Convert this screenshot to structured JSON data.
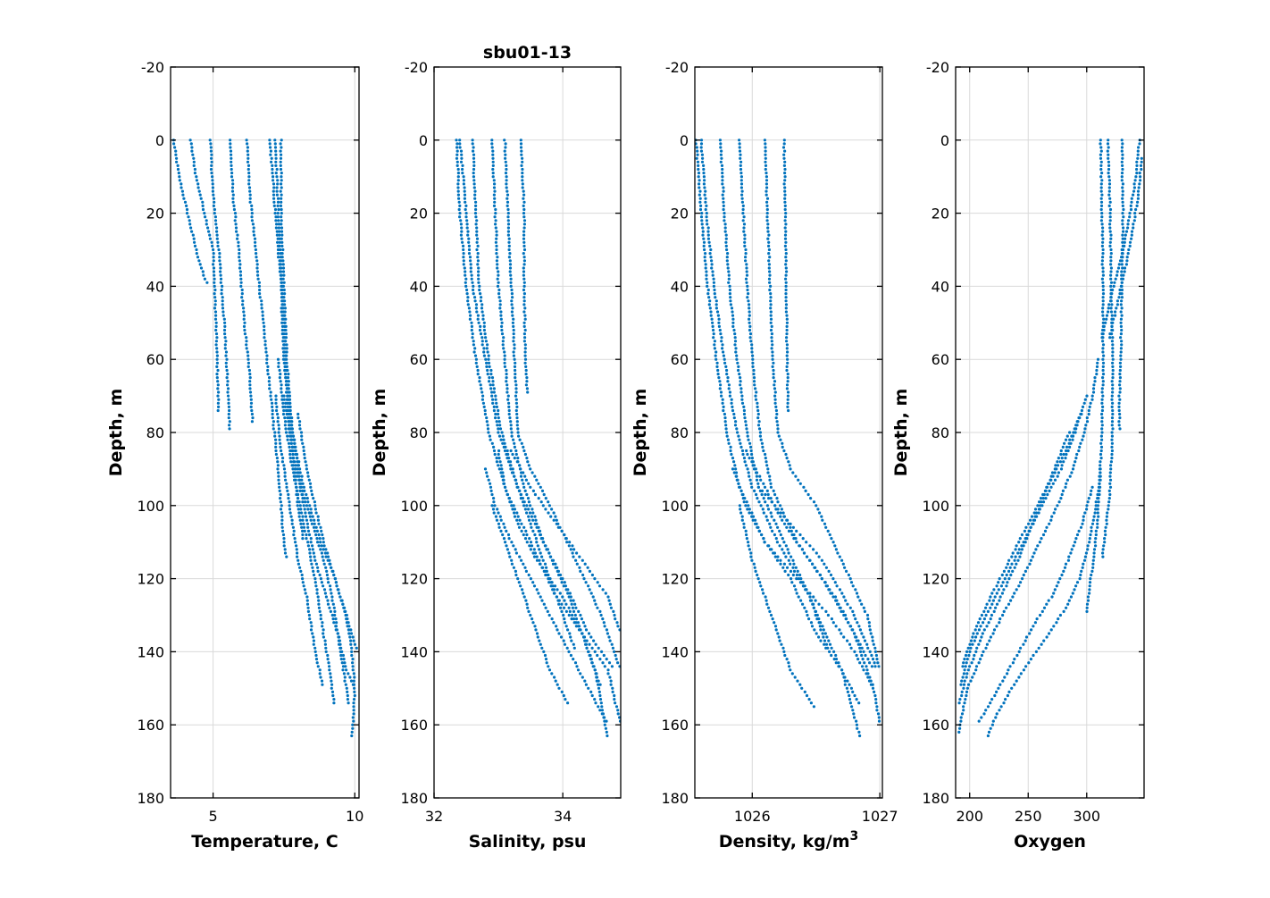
{
  "figure_title": "sbu01-13",
  "point_color": "#0072BD",
  "chart_data": [
    {
      "type": "scatter",
      "title": "",
      "xlabel": "Temperature, C",
      "ylabel": "Depth, m",
      "xlim": [
        3.5,
        10.15
      ],
      "ylim": [
        -20,
        180
      ],
      "y_reversed": true,
      "grid": true,
      "xticks": [
        5,
        10
      ],
      "xtick_labels": [
        "5",
        "10"
      ],
      "yticks": [
        -20,
        0,
        20,
        40,
        60,
        80,
        100,
        120,
        140,
        160,
        180
      ],
      "ytick_labels": [
        "-20",
        "0",
        "20",
        "40",
        "60",
        "80",
        "100",
        "120",
        "140",
        "160",
        "180"
      ],
      "profiles": [
        {
          "x": [
            3.6,
            3.8,
            4.1,
            4.4,
            4.7,
            4.9
          ],
          "y": [
            0,
            10,
            20,
            30,
            38,
            40
          ]
        },
        {
          "x": [
            4.2,
            4.4,
            4.7,
            5.0,
            5.1,
            5.2
          ],
          "y": [
            0,
            10,
            20,
            30,
            50,
            75
          ]
        },
        {
          "x": [
            4.9,
            5.0,
            5.2,
            5.4,
            5.5,
            5.6
          ],
          "y": [
            0,
            15,
            30,
            50,
            65,
            80
          ]
        },
        {
          "x": [
            5.6,
            5.7,
            5.9,
            6.1,
            6.3,
            6.4
          ],
          "y": [
            0,
            15,
            30,
            50,
            65,
            78
          ]
        },
        {
          "x": [
            6.2,
            6.3,
            6.5,
            6.7,
            6.9,
            7.1,
            7.3,
            7.4,
            7.5,
            7.6
          ],
          "y": [
            0,
            15,
            30,
            45,
            60,
            75,
            90,
            100,
            110,
            115
          ]
        },
        {
          "x": [
            7.2,
            7.3,
            7.4,
            7.5,
            7.6,
            7.8,
            8.0,
            8.2
          ],
          "y": [
            0,
            20,
            35,
            50,
            70,
            85,
            100,
            110
          ]
        },
        {
          "x": [
            7.4,
            7.4,
            7.5,
            7.6,
            7.8,
            8.1,
            8.5,
            8.9,
            9.2,
            9.4,
            9.6,
            9.8
          ],
          "y": [
            0,
            20,
            40,
            60,
            80,
            95,
            105,
            115,
            125,
            135,
            145,
            155
          ]
        },
        {
          "x": [
            7.0,
            7.2,
            7.4,
            7.5,
            7.8,
            8.2,
            8.8,
            9.3,
            9.7,
            9.9,
            10.0,
            9.9
          ],
          "y": [
            0,
            20,
            40,
            60,
            80,
            95,
            110,
            120,
            130,
            140,
            150,
            164
          ]
        },
        {
          "x": [
            7.3,
            7.5,
            7.8,
            8.2,
            8.6,
            9.0,
            9.3
          ],
          "y": [
            60,
            75,
            90,
            105,
            120,
            140,
            155
          ]
        },
        {
          "x": [
            7.5,
            7.8,
            8.2,
            8.6,
            9.0,
            9.4,
            9.7,
            10.0
          ],
          "y": [
            70,
            85,
            100,
            115,
            125,
            135,
            145,
            150
          ]
        },
        {
          "x": [
            8.0,
            8.3,
            8.6,
            8.9,
            9.3,
            9.7,
            10.1
          ],
          "y": [
            75,
            90,
            100,
            110,
            120,
            130,
            140
          ]
        },
        {
          "x": [
            7.2,
            7.4,
            7.7,
            8.0,
            8.3,
            8.6,
            8.9
          ],
          "y": [
            70,
            85,
            100,
            115,
            125,
            140,
            150
          ]
        }
      ]
    },
    {
      "type": "scatter",
      "title": "",
      "xlabel": "Salinity, psu",
      "ylabel": "Depth, m",
      "xlim": [
        32,
        34.9
      ],
      "ylim": [
        -20,
        180
      ],
      "y_reversed": true,
      "grid": true,
      "xticks": [
        32,
        34
      ],
      "xtick_labels": [
        "32",
        "34"
      ],
      "yticks": [
        -20,
        0,
        20,
        40,
        60,
        80,
        100,
        120,
        140,
        160,
        180
      ],
      "ytick_labels": [
        "-20",
        "0",
        "20",
        "40",
        "60",
        "80",
        "100",
        "120",
        "140",
        "160",
        "180"
      ],
      "profiles": [
        {
          "x": [
            32.35,
            32.4,
            32.5,
            32.65,
            32.85,
            33.1,
            33.5,
            33.9,
            34.3,
            34.7,
            34.9
          ],
          "y": [
            0,
            20,
            40,
            60,
            80,
            95,
            110,
            125,
            135,
            145,
            160
          ]
        },
        {
          "x": [
            32.4,
            32.5,
            32.6,
            32.8,
            33.0,
            33.3,
            33.7,
            34.1,
            34.5,
            34.7
          ],
          "y": [
            0,
            20,
            40,
            60,
            80,
            95,
            110,
            125,
            145,
            164
          ]
        },
        {
          "x": [
            32.6,
            32.65,
            32.7,
            32.85,
            33.05,
            33.3,
            33.6,
            33.9,
            34.2
          ],
          "y": [
            0,
            20,
            40,
            60,
            80,
            95,
            110,
            125,
            140
          ]
        },
        {
          "x": [
            32.9,
            32.95,
            33.0,
            33.1,
            33.2,
            33.4,
            33.7,
            34.0,
            34.4,
            34.8
          ],
          "y": [
            0,
            20,
            40,
            60,
            80,
            95,
            110,
            120,
            135,
            145
          ]
        },
        {
          "x": [
            33.1,
            33.15,
            33.2,
            33.25,
            33.3,
            33.5,
            33.8,
            34.2,
            34.6,
            34.9
          ],
          "y": [
            0,
            20,
            40,
            60,
            80,
            90,
            100,
            115,
            130,
            145
          ]
        },
        {
          "x": [
            33.35,
            33.4,
            33.4,
            33.42,
            33.45
          ],
          "y": [
            0,
            20,
            40,
            60,
            70
          ]
        },
        {
          "x": [
            33.0,
            33.1,
            33.3,
            33.6,
            34.0,
            34.3,
            34.6
          ],
          "y": [
            85,
            95,
            105,
            115,
            125,
            135,
            150
          ]
        },
        {
          "x": [
            32.8,
            32.95,
            33.2,
            33.5,
            33.8,
            34.1,
            34.4,
            34.7
          ],
          "y": [
            90,
            100,
            110,
            120,
            130,
            140,
            150,
            160
          ]
        },
        {
          "x": [
            32.9,
            33.1,
            33.3,
            33.6,
            33.8,
            34.1
          ],
          "y": [
            100,
            110,
            120,
            135,
            145,
            155
          ]
        },
        {
          "x": [
            33.2,
            33.5,
            33.9,
            34.3,
            34.7,
            34.9
          ],
          "y": [
            85,
            95,
            105,
            115,
            125,
            135
          ]
        }
      ]
    },
    {
      "type": "scatter",
      "title": "",
      "xlabel": "Density, kg/m",
      "xlabel_sup": "3",
      "ylabel": "Depth, m",
      "xlim": [
        1025.55,
        1027.02
      ],
      "ylim": [
        -20,
        180
      ],
      "y_reversed": true,
      "grid": true,
      "xticks": [
        1026,
        1027
      ],
      "xtick_labels": [
        "1026",
        "1027"
      ],
      "yticks": [
        -20,
        0,
        20,
        40,
        60,
        80,
        100,
        120,
        140,
        160,
        180
      ],
      "ytick_labels": [
        "-20",
        "0",
        "20",
        "40",
        "60",
        "80",
        "100",
        "120",
        "140",
        "160",
        "180"
      ],
      "profiles": [
        {
          "x": [
            1025.56,
            1025.6,
            1025.65,
            1025.72,
            1025.8,
            1025.9,
            1026.1,
            1026.35,
            1026.6,
            1026.8,
            1026.95,
            1027.0
          ],
          "y": [
            0,
            20,
            40,
            60,
            80,
            95,
            110,
            120,
            130,
            140,
            150,
            160
          ]
        },
        {
          "x": [
            1025.6,
            1025.64,
            1025.7,
            1025.78,
            1025.88,
            1026.0,
            1026.2,
            1026.45,
            1026.7,
            1026.85
          ],
          "y": [
            0,
            20,
            40,
            60,
            80,
            95,
            110,
            125,
            145,
            164
          ]
        },
        {
          "x": [
            1025.75,
            1025.78,
            1025.82,
            1025.88,
            1025.96,
            1026.05,
            1026.25,
            1026.45,
            1026.6
          ],
          "y": [
            0,
            20,
            40,
            60,
            80,
            95,
            110,
            125,
            140
          ]
        },
        {
          "x": [
            1025.9,
            1025.93,
            1025.96,
            1026.0,
            1026.06,
            1026.15,
            1026.35,
            1026.55,
            1026.8,
            1026.95
          ],
          "y": [
            0,
            20,
            40,
            60,
            80,
            95,
            110,
            120,
            135,
            145
          ]
        },
        {
          "x": [
            1026.1,
            1026.12,
            1026.14,
            1026.16,
            1026.2,
            1026.3,
            1026.5,
            1026.7,
            1026.9,
            1027.0
          ],
          "y": [
            0,
            20,
            40,
            60,
            80,
            90,
            100,
            115,
            130,
            145
          ]
        },
        {
          "x": [
            1026.25,
            1026.26,
            1026.27,
            1026.28
          ],
          "y": [
            0,
            25,
            50,
            75
          ]
        },
        {
          "x": [
            1025.95,
            1026.1,
            1026.25,
            1026.45,
            1026.65,
            1026.8,
            1026.95
          ],
          "y": [
            85,
            95,
            105,
            115,
            125,
            135,
            150
          ]
        },
        {
          "x": [
            1025.85,
            1025.95,
            1026.1,
            1026.3,
            1026.5,
            1026.7,
            1026.85
          ],
          "y": [
            90,
            100,
            110,
            120,
            135,
            145,
            155
          ]
        },
        {
          "x": [
            1025.9,
            1026.0,
            1026.15,
            1026.3,
            1026.5
          ],
          "y": [
            100,
            115,
            130,
            145,
            156
          ]
        },
        {
          "x": [
            1026.05,
            1026.3,
            1026.55,
            1026.8,
            1026.98
          ],
          "y": [
            95,
            105,
            115,
            130,
            145
          ]
        }
      ]
    },
    {
      "type": "scatter",
      "title": "",
      "xlabel": "Oxygen",
      "ylabel": "Depth, m",
      "xlim": [
        188,
        349
      ],
      "ylim": [
        -20,
        180
      ],
      "y_reversed": true,
      "grid": true,
      "xticks": [
        200,
        250,
        300
      ],
      "xtick_labels": [
        "200",
        "250",
        "300"
      ],
      "yticks": [
        -20,
        0,
        20,
        40,
        60,
        80,
        100,
        120,
        140,
        160,
        180
      ],
      "ytick_labels": [
        "-20",
        "0",
        "20",
        "40",
        "60",
        "80",
        "100",
        "120",
        "140",
        "160",
        "180"
      ],
      "profiles": [
        {
          "x": [
            312,
            313,
            314,
            314,
            313,
            311,
            309,
            306,
            303,
            300
          ],
          "y": [
            0,
            20,
            40,
            60,
            80,
            95,
            105,
            115,
            120,
            130
          ]
        },
        {
          "x": [
            318,
            320,
            321,
            322,
            322,
            320,
            317,
            313
          ],
          "y": [
            0,
            20,
            40,
            60,
            80,
            95,
            105,
            115
          ]
        },
        {
          "x": [
            330,
            331,
            330,
            329,
            328,
            328
          ],
          "y": [
            0,
            20,
            40,
            60,
            70,
            80
          ]
        },
        {
          "x": [
            345,
            342,
            337,
            331,
            323,
            316,
            312
          ],
          "y": [
            0,
            10,
            20,
            30,
            40,
            50,
            55
          ]
        },
        {
          "x": [
            347,
            344,
            339,
            333,
            326,
            319
          ],
          "y": [
            5,
            15,
            25,
            35,
            45,
            55
          ]
        },
        {
          "x": [
            310,
            305,
            298,
            288,
            275,
            260,
            245,
            228,
            212,
            198,
            190
          ],
          "y": [
            60,
            70,
            80,
            90,
            100,
            110,
            120,
            130,
            140,
            150,
            163
          ]
        },
        {
          "x": [
            300,
            290,
            278,
            262,
            246,
            230,
            214,
            200,
            192
          ],
          "y": [
            70,
            80,
            90,
            100,
            110,
            120,
            130,
            140,
            150
          ]
        },
        {
          "x": [
            295,
            282,
            266,
            250,
            234,
            218,
            203,
            193
          ],
          "y": [
            75,
            85,
            95,
            105,
            115,
            125,
            135,
            145
          ]
        },
        {
          "x": [
            312,
            308,
            302,
            294,
            282,
            268,
            252,
            236,
            222,
            214
          ],
          "y": [
            90,
            100,
            110,
            120,
            128,
            135,
            142,
            150,
            158,
            164
          ]
        },
        {
          "x": [
            305,
            296,
            284,
            270,
            256,
            242,
            228,
            216,
            206
          ],
          "y": [
            95,
            105,
            115,
            125,
            132,
            140,
            148,
            155,
            160
          ]
        },
        {
          "x": [
            285,
            270,
            255,
            240,
            225,
            210,
            198,
            190
          ],
          "y": [
            80,
            92,
            104,
            116,
            126,
            136,
            146,
            155
          ]
        }
      ]
    }
  ]
}
